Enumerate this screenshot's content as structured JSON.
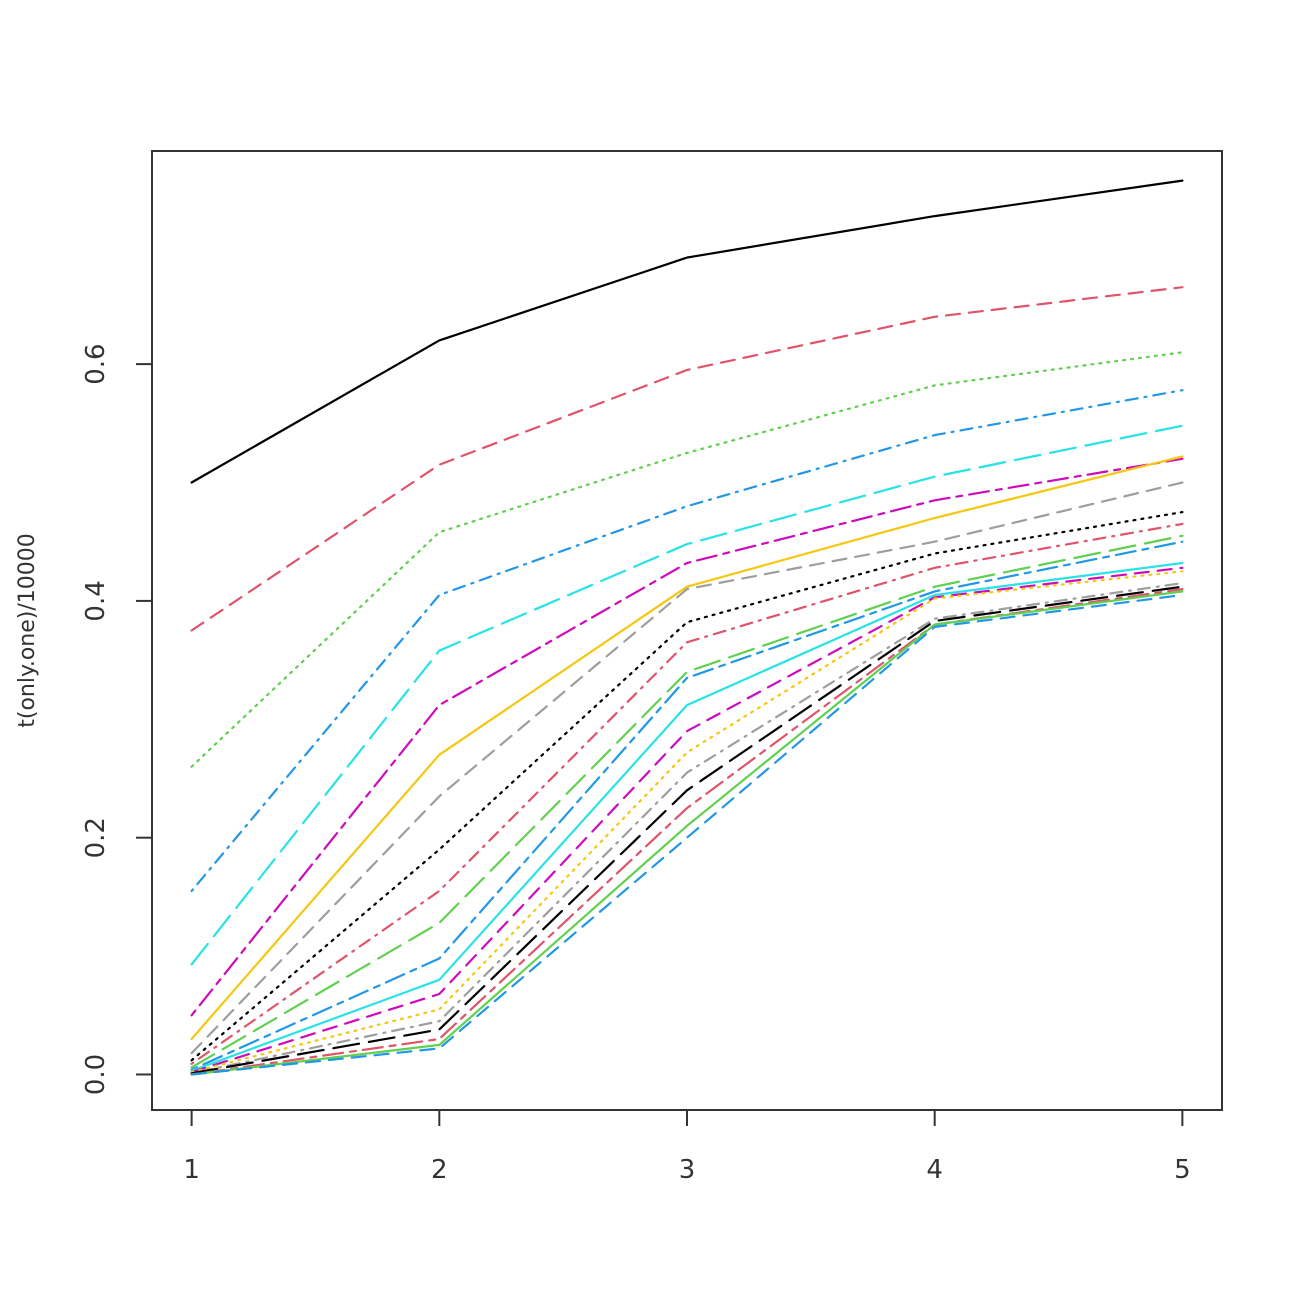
{
  "chart_data": {
    "type": "line",
    "title": "",
    "xlabel": "",
    "ylabel": "t(only.one)/10000",
    "xlim": [
      0.84,
      5.16
    ],
    "ylim": [
      -0.03,
      0.78
    ],
    "x": [
      1,
      2,
      3,
      4,
      5
    ],
    "x_ticks": [
      "1",
      "2",
      "3",
      "4",
      "5"
    ],
    "y_ticks": [
      "0.0",
      "0.2",
      "0.4",
      "0.6"
    ],
    "y_tick_values": [
      0.0,
      0.2,
      0.4,
      0.6
    ],
    "grid": false,
    "legend": "none",
    "series": [
      {
        "values": [
          0.5,
          0.62,
          0.69,
          0.725,
          0.755
        ],
        "color": "#000000",
        "dash": "solid"
      },
      {
        "values": [
          0.375,
          0.515,
          0.595,
          0.64,
          0.665
        ],
        "color": "#df536b",
        "dash": "dashed"
      },
      {
        "values": [
          0.26,
          0.458,
          0.525,
          0.582,
          0.61
        ],
        "color": "#61d04f",
        "dash": "dotted"
      },
      {
        "values": [
          0.155,
          0.405,
          0.48,
          0.54,
          0.578
        ],
        "color": "#2297e6",
        "dash": "dotdash"
      },
      {
        "values": [
          0.093,
          0.358,
          0.448,
          0.505,
          0.548
        ],
        "color": "#28e2e5",
        "dash": "longdash"
      },
      {
        "values": [
          0.05,
          0.312,
          0.432,
          0.485,
          0.52
        ],
        "color": "#cd0bbc",
        "dash": "twodash"
      },
      {
        "values": [
          0.03,
          0.27,
          0.412,
          0.47,
          0.522
        ],
        "color": "#f5c710",
        "dash": "solid"
      },
      {
        "values": [
          0.018,
          0.235,
          0.41,
          0.45,
          0.5
        ],
        "color": "#9e9e9e",
        "dash": "dashed"
      },
      {
        "values": [
          0.012,
          0.19,
          0.382,
          0.44,
          0.475
        ],
        "color": "#000000",
        "dash": "dotted"
      },
      {
        "values": [
          0.009,
          0.155,
          0.365,
          0.428,
          0.465
        ],
        "color": "#df536b",
        "dash": "dotdash"
      },
      {
        "values": [
          0.006,
          0.128,
          0.34,
          0.412,
          0.455
        ],
        "color": "#61d04f",
        "dash": "longdash"
      },
      {
        "values": [
          0.004,
          0.098,
          0.335,
          0.408,
          0.45
        ],
        "color": "#2297e6",
        "dash": "twodash"
      },
      {
        "values": [
          0.003,
          0.08,
          0.312,
          0.405,
          0.432
        ],
        "color": "#28e2e5",
        "dash": "solid"
      },
      {
        "values": [
          0.002,
          0.068,
          0.29,
          0.403,
          0.428
        ],
        "color": "#cd0bbc",
        "dash": "dashed"
      },
      {
        "values": [
          0.002,
          0.055,
          0.272,
          0.402,
          0.425
        ],
        "color": "#f5c710",
        "dash": "dotted"
      },
      {
        "values": [
          0.001,
          0.045,
          0.255,
          0.385,
          0.415
        ],
        "color": "#9e9e9e",
        "dash": "dotdash"
      },
      {
        "values": [
          0.001,
          0.038,
          0.24,
          0.383,
          0.412
        ],
        "color": "#000000",
        "dash": "longdash"
      },
      {
        "values": [
          0.0,
          0.03,
          0.225,
          0.38,
          0.41
        ],
        "color": "#df536b",
        "dash": "twodash"
      },
      {
        "values": [
          0.0,
          0.025,
          0.21,
          0.38,
          0.408
        ],
        "color": "#61d04f",
        "dash": "solid"
      },
      {
        "values": [
          0.0,
          0.022,
          0.2,
          0.378,
          0.405
        ],
        "color": "#2297e6",
        "dash": "dashed"
      }
    ]
  }
}
